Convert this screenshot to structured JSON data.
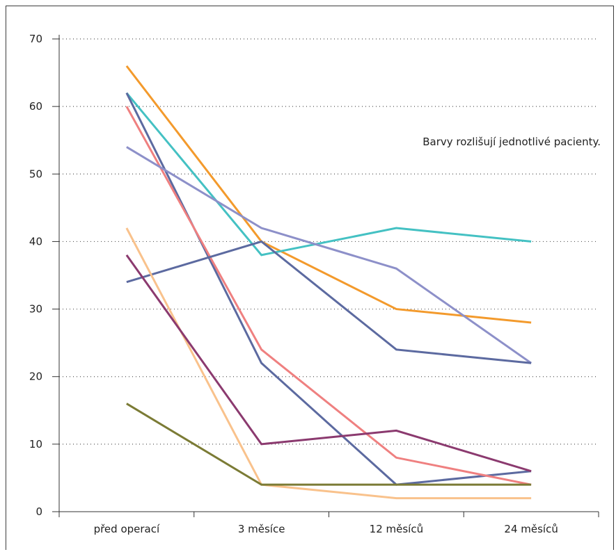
{
  "chart_data": {
    "type": "line",
    "categories": [
      "před operací",
      "3 měsíce",
      "12 měsíců",
      "24 měsíců"
    ],
    "ylim": [
      0,
      70
    ],
    "yticks": [
      0,
      10,
      20,
      30,
      40,
      50,
      60,
      70
    ],
    "grid": "horizontal dotted",
    "annotation": "Barvy rozlišují jednotlivé pacienty.",
    "series": [
      {
        "color": "#f39a2c",
        "values": [
          66,
          40,
          30,
          28
        ]
      },
      {
        "color": "#44c1c3",
        "values": [
          62,
          38,
          42,
          40
        ]
      },
      {
        "color": "#5c6aa0",
        "values": [
          62,
          22,
          4,
          6
        ]
      },
      {
        "color": "#ef8080",
        "values": [
          60,
          24,
          8,
          4
        ]
      },
      {
        "color": "#8d90c9",
        "values": [
          54,
          42,
          36,
          22
        ]
      },
      {
        "color": "#5c6aa0",
        "values": [
          34,
          40,
          24,
          22
        ]
      },
      {
        "color": "#f9c28c",
        "values": [
          42,
          4,
          2,
          2
        ]
      },
      {
        "color": "#8b3a6f",
        "values": [
          38,
          10,
          12,
          6
        ]
      },
      {
        "color": "#7b7b35",
        "values": [
          16,
          4,
          4,
          4
        ]
      }
    ]
  }
}
